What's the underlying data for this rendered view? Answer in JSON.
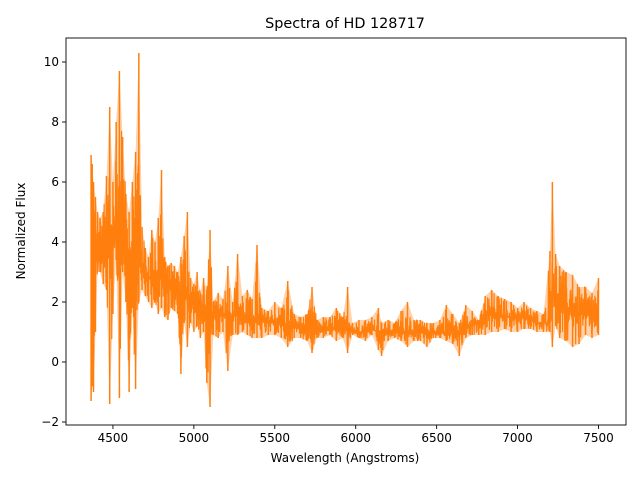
{
  "chart_data": {
    "type": "line",
    "title": "Spectra of HD 128717",
    "xlabel": "Wavelength (Angstroms)",
    "ylabel": "Normalized Flux",
    "xlim": [
      4210,
      7670
    ],
    "ylim": [
      -2.1,
      10.8
    ],
    "x_ticks": [
      4500,
      5000,
      5500,
      6000,
      6500,
      7000,
      7500
    ],
    "y_ticks": [
      -2,
      0,
      2,
      4,
      6,
      8,
      10
    ],
    "grid": false,
    "legend": "none",
    "series": [
      {
        "color": "#ff7f0e",
        "x": [
          4365,
          4372,
          4380,
          4392,
          4405,
          4420,
          4440,
          4460,
          4480,
          4500,
          4520,
          4540,
          4560,
          4580,
          4600,
          4620,
          4640,
          4660,
          4680,
          4700,
          4720,
          4740,
          4760,
          4780,
          4800,
          4820,
          4840,
          4860,
          4880,
          4900,
          4920,
          4940,
          4960,
          4980,
          5000,
          5020,
          5040,
          5060,
          5080,
          5100,
          5120,
          5150,
          5180,
          5210,
          5240,
          5270,
          5300,
          5330,
          5360,
          5390,
          5420,
          5460,
          5500,
          5540,
          5580,
          5620,
          5660,
          5700,
          5730,
          5760,
          5800,
          5840,
          5880,
          5920,
          5950,
          5980,
          6020,
          6060,
          6100,
          6140,
          6160,
          6200,
          6240,
          6280,
          6320,
          6360,
          6400,
          6440,
          6480,
          6520,
          6560,
          6600,
          6640,
          6680,
          6720,
          6760,
          6800,
          6840,
          6880,
          6920,
          6960,
          7000,
          7040,
          7080,
          7120,
          7160,
          7200,
          7215,
          7235,
          7260,
          7300,
          7340,
          7380,
          7420,
          7460,
          7500
        ],
        "y_min": [
          -1.3,
          -0.8,
          -1.0,
          1.0,
          3.0,
          3.0,
          2.6,
          2.4,
          -1.4,
          1.6,
          3.4,
          -1.2,
          3.0,
          2.0,
          -1.0,
          1.8,
          -0.9,
          2.0,
          2.4,
          2.2,
          2.0,
          1.8,
          2.0,
          1.6,
          1.8,
          1.5,
          1.4,
          1.8,
          1.7,
          1.6,
          -0.4,
          1.3,
          0.5,
          1.3,
          1.0,
          1.2,
          0.8,
          1.0,
          -0.7,
          -1.5,
          0.9,
          0.8,
          1.0,
          -0.3,
          0.9,
          0.9,
          1.0,
          0.9,
          0.8,
          0.8,
          0.8,
          0.9,
          0.9,
          0.8,
          0.5,
          0.8,
          0.8,
          0.7,
          0.3,
          0.8,
          0.8,
          0.9,
          0.7,
          0.8,
          0.3,
          0.9,
          0.8,
          0.7,
          0.9,
          0.4,
          0.2,
          0.7,
          0.8,
          0.7,
          0.5,
          0.7,
          0.7,
          0.5,
          0.8,
          0.8,
          0.7,
          0.6,
          0.2,
          0.8,
          0.9,
          0.9,
          0.9,
          1.0,
          1.0,
          1.1,
          1.0,
          1.0,
          1.1,
          1.1,
          1.0,
          1.0,
          1.0,
          0.5,
          1.2,
          0.8,
          0.7,
          0.5,
          0.6,
          0.9,
          0.8,
          0.9
        ],
        "y_max": [
          6.9,
          6.6,
          6.0,
          5.5,
          5.0,
          4.8,
          5.0,
          6.2,
          8.5,
          6.0,
          8.0,
          9.7,
          7.5,
          5.6,
          5.0,
          6.0,
          7.0,
          10.3,
          4.5,
          3.8,
          3.5,
          4.4,
          4.0,
          4.8,
          6.4,
          3.5,
          3.2,
          3.3,
          3.2,
          3.0,
          3.5,
          4.2,
          5.0,
          2.8,
          2.6,
          3.0,
          2.3,
          2.8,
          2.4,
          4.4,
          2.0,
          2.3,
          2.1,
          3.2,
          2.0,
          3.6,
          2.2,
          2.4,
          2.1,
          3.9,
          1.8,
          1.7,
          2.0,
          1.8,
          2.7,
          1.6,
          1.5,
          1.6,
          2.5,
          1.4,
          1.5,
          1.5,
          1.8,
          1.5,
          2.5,
          1.3,
          1.4,
          1.4,
          1.5,
          1.8,
          1.3,
          1.4,
          1.3,
          1.7,
          2.0,
          1.4,
          1.4,
          1.3,
          1.3,
          1.4,
          1.9,
          1.6,
          1.3,
          1.9,
          1.7,
          1.4,
          2.2,
          2.4,
          2.2,
          2.1,
          2.0,
          1.8,
          2.0,
          1.8,
          1.7,
          1.6,
          3.7,
          6.0,
          3.6,
          3.2,
          3.0,
          2.9,
          2.5,
          2.5,
          2.3,
          2.8
        ],
        "y_mid": [
          3.5,
          3.8,
          4.0,
          3.6,
          3.4,
          3.5,
          3.4,
          3.5,
          3.6,
          3.8,
          4.2,
          4.6,
          4.2,
          4.0,
          3.6,
          3.4,
          3.3,
          3.3,
          3.2,
          3.0,
          2.8,
          2.8,
          2.8,
          2.8,
          2.8,
          2.6,
          2.5,
          2.6,
          2.5,
          2.4,
          2.3,
          2.2,
          2.2,
          2.1,
          2.0,
          2.0,
          1.8,
          1.8,
          1.7,
          1.8,
          1.6,
          1.6,
          1.6,
          1.6,
          1.5,
          1.6,
          1.5,
          1.5,
          1.4,
          1.4,
          1.4,
          1.3,
          1.3,
          1.3,
          1.2,
          1.2,
          1.2,
          1.1,
          1.1,
          1.1,
          1.1,
          1.1,
          1.1,
          1.1,
          1.1,
          1.0,
          1.0,
          1.0,
          1.1,
          1.0,
          1.0,
          1.0,
          1.0,
          1.0,
          1.0,
          1.0,
          1.0,
          1.0,
          1.0,
          1.0,
          1.0,
          1.0,
          1.0,
          1.1,
          1.3,
          1.3,
          1.5,
          1.6,
          1.6,
          1.5,
          1.5,
          1.5,
          1.5,
          1.4,
          1.3,
          1.3,
          1.3,
          2.4,
          2.2,
          2.0,
          1.8,
          1.7,
          1.6,
          1.6,
          1.6,
          1.6
        ]
      }
    ]
  }
}
